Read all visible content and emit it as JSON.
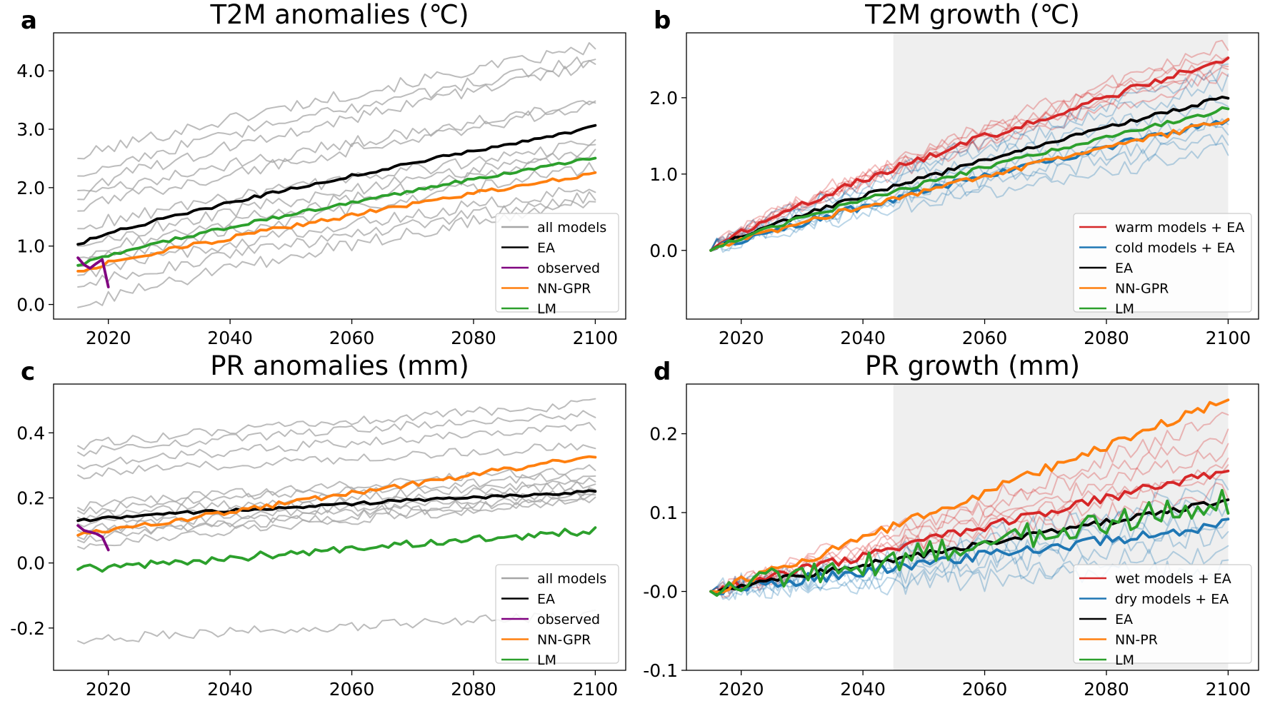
{
  "figure": {
    "colors": {
      "models": "#a6a6a6",
      "ea": "#000000",
      "observed": "#800080",
      "orange": "#ff7f0e",
      "green": "#2ca02c",
      "red": "#d62728",
      "blue": "#1f77b4",
      "shade": "#efefef"
    }
  },
  "chart_data": [
    {
      "id": "a",
      "letter": "a",
      "type": "line",
      "title": "T2M anomalies (℃)",
      "xlim": [
        2011,
        2105
      ],
      "ylim": [
        -0.25,
        4.65
      ],
      "xticks": [
        2020,
        2040,
        2060,
        2080,
        2100
      ],
      "xtick_labels": [
        "2020",
        "2040",
        "2060",
        "2080",
        "2100"
      ],
      "yticks": [
        0,
        1,
        2,
        3,
        4
      ],
      "ytick_labels": [
        "0.0",
        "1.0",
        "2.0",
        "3.0",
        "4.0"
      ],
      "legend_position": "lower-right",
      "legend": [
        {
          "label": "all models",
          "color_key": "models"
        },
        {
          "label": "EA",
          "color_key": "ea"
        },
        {
          "label": "observed",
          "color_key": "observed"
        },
        {
          "label": "NN-GPR",
          "color_key": "orange"
        },
        {
          "label": "LM",
          "color_key": "green"
        }
      ],
      "model_lines": {
        "color_key": "models",
        "opacity": 0.75,
        "x_start": 2015,
        "x_end": 2100,
        "step": 1,
        "start_end": [
          [
            2.5,
            4.4
          ],
          [
            2.2,
            4.2
          ],
          [
            1.95,
            4.1
          ],
          [
            1.8,
            3.45
          ],
          [
            1.6,
            3.4
          ],
          [
            1.3,
            2.75
          ],
          [
            1.0,
            2.65
          ],
          [
            0.8,
            2.55
          ],
          [
            0.65,
            2.35
          ],
          [
            0.5,
            2.0
          ],
          [
            0.3,
            1.85
          ],
          [
            -0.05,
            1.8
          ]
        ],
        "noise": 0.11
      },
      "series": [
        {
          "name": "EA",
          "color_key": "ea",
          "width": 3.8,
          "x_start": 2015,
          "y_start": 1.03,
          "y_end": 3.04,
          "curve": 0.85,
          "noise": 0.03
        },
        {
          "name": "NN-GPR",
          "color_key": "orange",
          "width": 3.8,
          "x_start": 2015,
          "y_start": 0.57,
          "y_end": 2.25,
          "curve": 0.88,
          "noise": 0.04
        },
        {
          "name": "LM",
          "color_key": "green",
          "width": 3.8,
          "x_start": 2015,
          "y_start": 0.67,
          "y_end": 2.52,
          "curve": 0.85,
          "noise": 0.03
        }
      ],
      "observed": {
        "name": "observed",
        "color_key": "observed",
        "x": [
          2015,
          2016,
          2017,
          2018,
          2019,
          2020
        ],
        "y": [
          0.8,
          0.68,
          0.62,
          0.7,
          0.77,
          0.3
        ]
      }
    },
    {
      "id": "b",
      "letter": "b",
      "type": "line",
      "title": "T2M growth (℃)",
      "xlim": [
        2011,
        2105
      ],
      "ylim": [
        -0.9,
        2.85
      ],
      "shade_x": [
        2045,
        2100
      ],
      "xticks": [
        2020,
        2040,
        2060,
        2080,
        2100
      ],
      "xtick_labels": [
        "2020",
        "2040",
        "2060",
        "2080",
        "2100"
      ],
      "yticks": [
        0,
        1,
        2
      ],
      "ytick_labels": [
        "0.0",
        "1.0",
        "2.0"
      ],
      "legend_position": "lower-right",
      "legend": [
        {
          "label": "warm models + EA",
          "color_key": "red"
        },
        {
          "label": "cold models + EA",
          "color_key": "blue"
        },
        {
          "label": "EA",
          "color_key": "ea"
        },
        {
          "label": "NN-GPR",
          "color_key": "orange"
        },
        {
          "label": "LM",
          "color_key": "green"
        }
      ],
      "model_groups": [
        {
          "color_key": "red",
          "opacity": 0.3,
          "x_start": 2015,
          "ends": [
            2.7,
            2.6,
            2.55,
            2.45,
            2.4,
            2.3
          ],
          "curve": 0.8,
          "noise": 0.09
        },
        {
          "color_key": "blue",
          "opacity": 0.3,
          "x_start": 2015,
          "ends": [
            2.35,
            2.2,
            2.0,
            1.75,
            1.6,
            1.45,
            1.3
          ],
          "curve": 0.8,
          "noise": 0.12
        }
      ],
      "series": [
        {
          "name": "warm models + EA",
          "color_key": "red",
          "width": 3.8,
          "x_start": 2015,
          "y_start": 0,
          "y_end": 2.5,
          "curve": 0.82,
          "noise": 0.05
        },
        {
          "name": "cold models + EA",
          "color_key": "blue",
          "width": 3.8,
          "x_start": 2015,
          "y_start": 0,
          "y_end": 1.72,
          "curve": 0.9,
          "noise": 0.05
        },
        {
          "name": "EA",
          "color_key": "ea",
          "width": 3.8,
          "x_start": 2015,
          "y_start": 0,
          "y_end": 2.02,
          "curve": 0.85,
          "noise": 0.03
        },
        {
          "name": "NN-GPR",
          "color_key": "orange",
          "width": 3.8,
          "x_start": 2015,
          "y_start": 0,
          "y_end": 1.7,
          "curve": 0.88,
          "noise": 0.04
        },
        {
          "name": "LM",
          "color_key": "green",
          "width": 3.8,
          "x_start": 2015,
          "y_start": 0,
          "y_end": 1.86,
          "curve": 0.85,
          "noise": 0.03
        }
      ]
    },
    {
      "id": "c",
      "letter": "c",
      "type": "line",
      "title": "PR anomalies (mm)",
      "xlim": [
        2011,
        2105
      ],
      "ylim": [
        -0.33,
        0.55
      ],
      "xticks": [
        2020,
        2040,
        2060,
        2080,
        2100
      ],
      "xtick_labels": [
        "2020",
        "2040",
        "2060",
        "2080",
        "2100"
      ],
      "yticks": [
        -0.2,
        0,
        0.2,
        0.4
      ],
      "ytick_labels": [
        "-0.2",
        "0.0",
        "0.2",
        "0.4"
      ],
      "legend_position": "lower-right",
      "legend": [
        {
          "label": "all models",
          "color_key": "models"
        },
        {
          "label": "EA",
          "color_key": "ea"
        },
        {
          "label": "observed",
          "color_key": "observed"
        },
        {
          "label": "NN-GPR",
          "color_key": "orange"
        },
        {
          "label": "LM",
          "color_key": "green"
        }
      ],
      "model_lines": {
        "color_key": "models",
        "opacity": 0.75,
        "x_start": 2015,
        "x_end": 2100,
        "step": 1,
        "start_end": [
          [
            0.36,
            0.49
          ],
          [
            0.34,
            0.46
          ],
          [
            0.3,
            0.42
          ],
          [
            0.27,
            0.36
          ],
          [
            0.17,
            0.29
          ],
          [
            0.16,
            0.27
          ],
          [
            0.14,
            0.25
          ],
          [
            0.12,
            0.24
          ],
          [
            0.1,
            0.22
          ],
          [
            0.08,
            0.21
          ],
          [
            0.07,
            0.2
          ],
          [
            0.05,
            0.19
          ],
          [
            -0.24,
            -0.16
          ]
        ],
        "noise": 0.015
      },
      "series": [
        {
          "name": "EA",
          "color_key": "ea",
          "width": 3.8,
          "x_start": 2015,
          "y_start": 0.13,
          "y_end": 0.22,
          "curve": 0.85,
          "noise": 0.005
        },
        {
          "name": "NN-GPR",
          "color_key": "orange",
          "width": 3.8,
          "x_start": 2015,
          "y_start": 0.085,
          "y_end": 0.33,
          "curve": 1.0,
          "noise": 0.008
        },
        {
          "name": "LM",
          "color_key": "green",
          "width": 3.8,
          "x_start": 2015,
          "y_start": -0.02,
          "y_end": 0.1,
          "curve": 1.0,
          "noise": 0.012
        }
      ],
      "observed": {
        "name": "observed",
        "color_key": "observed",
        "x": [
          2015,
          2016,
          2017,
          2018,
          2019,
          2020
        ],
        "y": [
          0.115,
          0.1,
          0.095,
          0.09,
          0.08,
          0.04
        ]
      }
    },
    {
      "id": "d",
      "letter": "d",
      "type": "line",
      "title": "PR growth (mm)",
      "xlim": [
        2011,
        2105
      ],
      "ylim": [
        -0.1,
        0.263
      ],
      "shade_x": [
        2045,
        2100
      ],
      "xticks": [
        2020,
        2040,
        2060,
        2080,
        2100
      ],
      "xtick_labels": [
        "2020",
        "2040",
        "2060",
        "2080",
        "2100"
      ],
      "yticks": [
        -0.1,
        0,
        0.1,
        0.2
      ],
      "ytick_labels": [
        "-0.1",
        "-0.0",
        "0.1",
        "0.2"
      ],
      "legend_position": "lower-right",
      "legend": [
        {
          "label": "wet models + EA",
          "color_key": "red"
        },
        {
          "label": "dry models + EA",
          "color_key": "blue"
        },
        {
          "label": "EA",
          "color_key": "ea"
        },
        {
          "label": "NN-PR",
          "color_key": "orange"
        },
        {
          "label": "LM",
          "color_key": "green"
        }
      ],
      "model_groups": [
        {
          "color_key": "red",
          "opacity": 0.3,
          "x_start": 2015,
          "ends": [
            0.22,
            0.2,
            0.18,
            0.16,
            0.15,
            0.13
          ],
          "curve": 1.0,
          "noise": 0.012
        },
        {
          "color_key": "blue",
          "opacity": 0.3,
          "x_start": 2015,
          "ends": [
            0.13,
            0.11,
            0.09,
            0.07,
            0.05,
            0.03
          ],
          "curve": 1.0,
          "noise": 0.016
        }
      ],
      "series": [
        {
          "name": "wet models + EA",
          "color_key": "red",
          "width": 3.8,
          "x_start": 2015,
          "y_start": 0,
          "y_end": 0.155,
          "curve": 1.0,
          "noise": 0.006
        },
        {
          "name": "dry models + EA",
          "color_key": "blue",
          "width": 3.8,
          "x_start": 2015,
          "y_start": 0,
          "y_end": 0.085,
          "curve": 1.0,
          "noise": 0.007
        },
        {
          "name": "EA",
          "color_key": "ea",
          "width": 3.8,
          "x_start": 2015,
          "y_start": 0,
          "y_end": 0.115,
          "curve": 1.0,
          "noise": 0.004
        },
        {
          "name": "NN-PR",
          "color_key": "orange",
          "width": 3.8,
          "x_start": 2015,
          "y_start": 0,
          "y_end": 0.245,
          "curve": 1.05,
          "noise": 0.006
        },
        {
          "name": "LM",
          "color_key": "green",
          "width": 3.8,
          "x_start": 2015,
          "y_start": 0,
          "y_end": 0.115,
          "curve": 1.0,
          "noise": 0.016
        }
      ]
    }
  ]
}
